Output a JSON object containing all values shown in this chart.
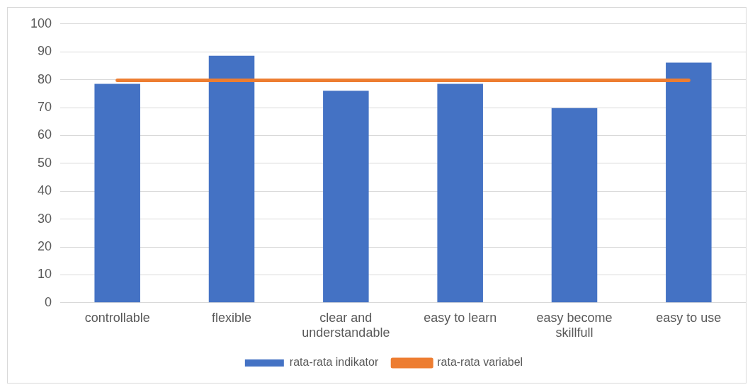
{
  "chart_data": {
    "type": "bar",
    "categories": [
      "controllable",
      "flexible",
      "clear and understandable",
      "easy to learn",
      "easy become skillfull",
      "easy to use"
    ],
    "series": [
      {
        "name": "rata-rata indikator",
        "color": "#4472c4",
        "values": [
          78.5,
          88.6,
          76.0,
          78.5,
          69.8,
          86.1
        ]
      },
      {
        "name": "rata-rata variabel",
        "type": "line",
        "color": "#ed7d31",
        "values": [
          79.8,
          79.8,
          79.8,
          79.8,
          79.8,
          79.8
        ]
      }
    ],
    "ylim": [
      0,
      100
    ],
    "yticks": [
      0,
      10,
      20,
      30,
      40,
      50,
      60,
      70,
      80,
      90,
      100
    ],
    "grid": "y",
    "legend": "bottom",
    "marker": "none"
  }
}
